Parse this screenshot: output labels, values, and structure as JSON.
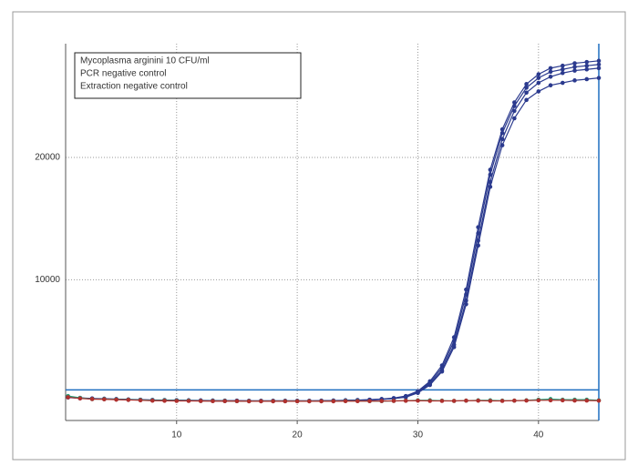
{
  "chart_data": {
    "type": "line",
    "x": [
      1,
      2,
      3,
      4,
      5,
      6,
      7,
      8,
      9,
      10,
      11,
      12,
      13,
      14,
      15,
      16,
      17,
      18,
      19,
      20,
      21,
      22,
      23,
      24,
      25,
      26,
      27,
      28,
      29,
      30,
      31,
      32,
      33,
      34,
      35,
      36,
      37,
      38,
      39,
      40,
      41,
      42,
      43,
      44,
      45
    ],
    "series": [
      {
        "name": "Mycoplasma arginini 10 CFU/ml",
        "color": "#2b3a8e",
        "values": [
          450,
          350,
          300,
          280,
          250,
          220,
          200,
          180,
          170,
          160,
          150,
          140,
          130,
          120,
          120,
          110,
          110,
          110,
          110,
          110,
          110,
          120,
          130,
          150,
          170,
          200,
          250,
          330,
          500,
          900,
          1700,
          3000,
          5300,
          9200,
          14300,
          19000,
          22300,
          24500,
          26000,
          26800,
          27300,
          27500,
          27700,
          27800,
          27900
        ]
      },
      {
        "name": null,
        "color": "#2b3a8e",
        "values": [
          420,
          330,
          290,
          270,
          240,
          210,
          190,
          170,
          160,
          150,
          140,
          130,
          120,
          110,
          110,
          100,
          100,
          100,
          100,
          100,
          100,
          110,
          120,
          140,
          160,
          190,
          240,
          310,
          450,
          850,
          1600,
          2800,
          5000,
          8800,
          13800,
          18600,
          22000,
          24200,
          25700,
          26500,
          27000,
          27200,
          27400,
          27500,
          27600
        ]
      },
      {
        "name": null,
        "color": "#2b3a8e",
        "values": [
          400,
          320,
          280,
          260,
          230,
          200,
          180,
          160,
          150,
          140,
          130,
          120,
          110,
          100,
          100,
          90,
          90,
          90,
          90,
          90,
          90,
          100,
          110,
          130,
          150,
          180,
          230,
          300,
          420,
          800,
          1500,
          2600,
          4700,
          8300,
          13200,
          18000,
          21500,
          23800,
          25300,
          26100,
          26600,
          26900,
          27100,
          27200,
          27300
        ]
      },
      {
        "name": null,
        "color": "#2b3a8e",
        "values": [
          380,
          310,
          270,
          250,
          220,
          190,
          170,
          150,
          140,
          130,
          120,
          110,
          100,
          90,
          90,
          80,
          80,
          80,
          80,
          80,
          80,
          90,
          100,
          120,
          140,
          170,
          220,
          290,
          400,
          750,
          1400,
          2500,
          4500,
          8000,
          12800,
          17600,
          21000,
          23200,
          24700,
          25400,
          25900,
          26100,
          26300,
          26400,
          26500
        ]
      },
      {
        "name": "PCR negative control",
        "color": "#23a07a",
        "values": [
          500,
          350,
          250,
          250,
          220,
          200,
          180,
          150,
          150,
          130,
          120,
          100,
          100,
          100,
          80,
          80,
          80,
          80,
          80,
          80,
          80,
          80,
          80,
          100,
          100,
          80,
          80,
          100,
          120,
          150,
          150,
          120,
          100,
          120,
          150,
          150,
          120,
          120,
          150,
          200,
          250,
          200,
          200,
          200,
          150
        ]
      },
      {
        "name": "Extraction negative control",
        "color": "#b0302e",
        "values": [
          400,
          300,
          250,
          230,
          200,
          180,
          150,
          120,
          110,
          100,
          100,
          90,
          80,
          80,
          80,
          70,
          70,
          70,
          70,
          70,
          70,
          70,
          70,
          80,
          80,
          80,
          90,
          100,
          110,
          120,
          100,
          100,
          100,
          120,
          120,
          100,
          100,
          120,
          130,
          150,
          150,
          150,
          130,
          130,
          120
        ]
      }
    ],
    "threshold": 1000,
    "threshold_color": "#1f6fc0",
    "xlim": [
      0.8,
      45
    ],
    "xticks": [
      10,
      20,
      30,
      40
    ],
    "ylim": [
      -1500,
      29300
    ],
    "yticks": [
      10000,
      20000
    ],
    "grid": true,
    "legend": "top-left"
  }
}
